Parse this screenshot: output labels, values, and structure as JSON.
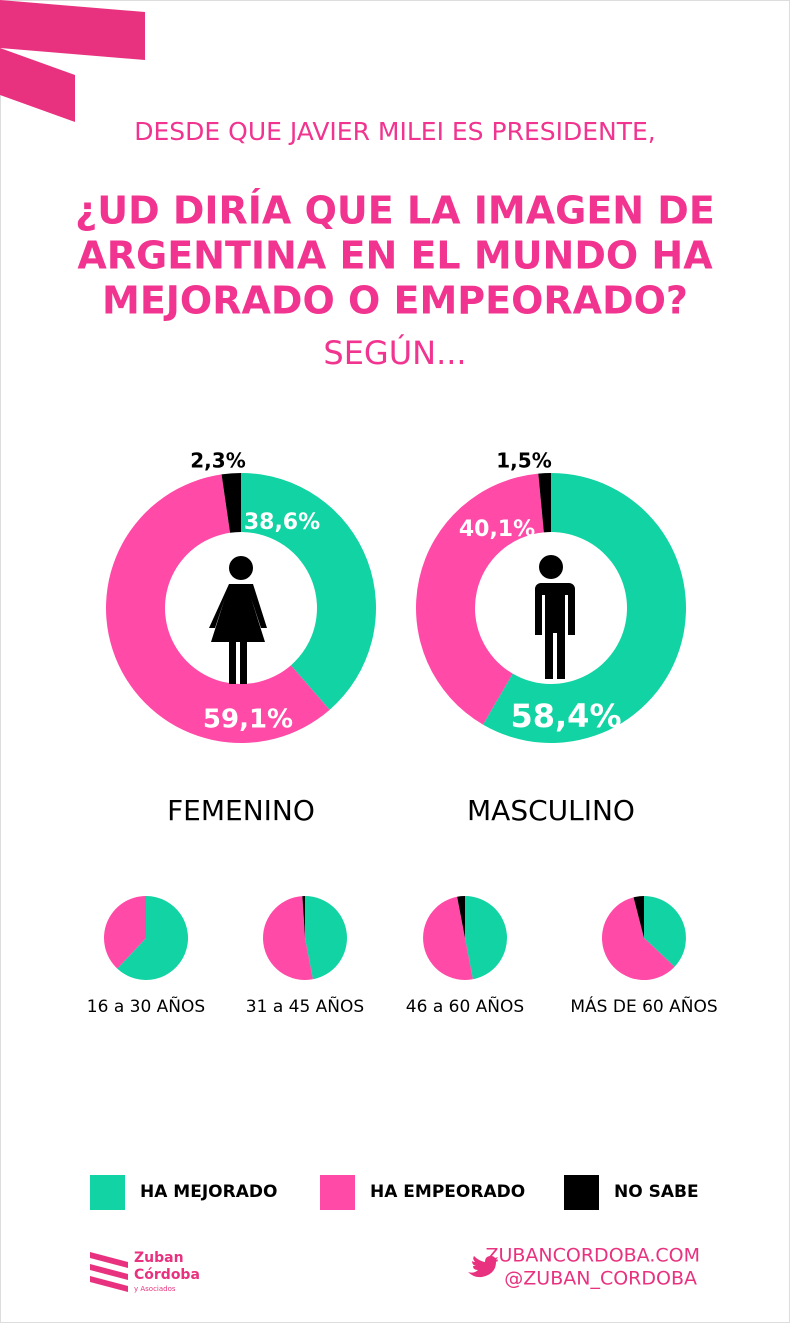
{
  "header": {
    "subtitle": "DESDE QUE JAVIER MILEI ES PRESIDENTE,",
    "title_lines": [
      "¿UD DIRÍA QUE LA IMAGEN DE",
      "ARGENTINA EN EL MUNDO HA",
      "MEJORADO O EMPEORADO?"
    ],
    "suffix": "SEGÚN..."
  },
  "legend": {
    "labels": [
      "HA MEJORADO",
      "HA EMPEORADO",
      "NO SABE"
    ],
    "colors": [
      "#12d3a3",
      "#ff4aa8",
      "#000000"
    ]
  },
  "chart_data": [
    {
      "type": "donut",
      "title": "FEMENINO",
      "values": [
        38.6,
        59.1,
        2.3
      ],
      "value_labels": [
        "38,6%",
        "59,1%",
        "2,3%"
      ]
    },
    {
      "type": "donut",
      "title": "MASCULINO",
      "values": [
        58.4,
        40.1,
        1.5
      ],
      "value_labels": [
        "58,4%",
        "40,1%",
        "1,5%"
      ]
    },
    {
      "type": "pie",
      "title": "16 a 30 AÑOS",
      "values": [
        62,
        38
      ]
    },
    {
      "type": "pie",
      "title": "31 a 45 AÑOS",
      "values": [
        47,
        52,
        1
      ]
    },
    {
      "type": "pie",
      "title": "46 a 60 AÑOS",
      "values": [
        47,
        50,
        3
      ]
    },
    {
      "type": "pie",
      "title": "MÁS DE 60 AÑOS",
      "values": [
        37,
        59,
        4
      ]
    }
  ],
  "footer": {
    "logo": [
      "Zuban",
      "Córdoba",
      "y Asociados"
    ],
    "website": "ZUBANCORDOBA.COM",
    "twitter": "@ZUBAN_CORDOBA"
  }
}
